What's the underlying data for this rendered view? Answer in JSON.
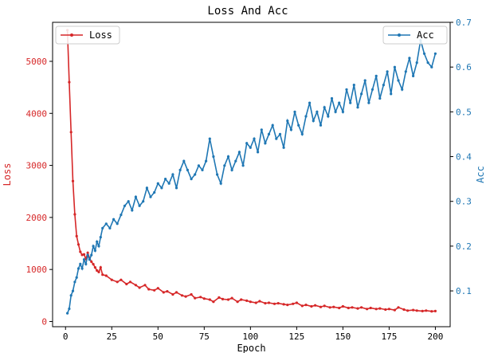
{
  "chart_data": {
    "type": "line",
    "title": "Loss And Acc",
    "xlabel": "Epoch",
    "xlim": [
      -7,
      208
    ],
    "x_ticks": [
      0,
      25,
      50,
      75,
      100,
      125,
      150,
      175,
      200
    ],
    "grid": false,
    "y_left": {
      "label": "Loss",
      "lim": [
        -100,
        5750
      ],
      "ticks": [
        0,
        1000,
        2000,
        3000,
        4000,
        5000
      ]
    },
    "y_right": {
      "label": "Acc",
      "lim": [
        0.02,
        0.7
      ],
      "ticks": [
        0.1,
        0.2,
        0.3,
        0.4,
        0.5,
        0.6,
        0.7
      ],
      "tick_labels": [
        "0.1",
        "0.2",
        "0.3",
        "0.4",
        "0.5",
        "0.6",
        "0.7"
      ]
    },
    "series": [
      {
        "name": "Loss",
        "axis": "left",
        "color": "#d62728",
        "legend": "upper-left",
        "points": [
          [
            1,
            5600
          ],
          [
            2,
            4600
          ],
          [
            3,
            3640
          ],
          [
            4,
            2700
          ],
          [
            5,
            2060
          ],
          [
            6,
            1640
          ],
          [
            7,
            1480
          ],
          [
            8,
            1340
          ],
          [
            9,
            1280
          ],
          [
            10,
            1290
          ],
          [
            11,
            1200
          ],
          [
            12,
            1320
          ],
          [
            13,
            1220
          ],
          [
            14,
            1150
          ],
          [
            15,
            1100
          ],
          [
            16,
            1040
          ],
          [
            17,
            980
          ],
          [
            18,
            950
          ],
          [
            19,
            1040
          ],
          [
            20,
            900
          ],
          [
            22,
            880
          ],
          [
            25,
            800
          ],
          [
            28,
            760
          ],
          [
            30,
            800
          ],
          [
            33,
            720
          ],
          [
            35,
            760
          ],
          [
            38,
            700
          ],
          [
            40,
            650
          ],
          [
            43,
            700
          ],
          [
            45,
            620
          ],
          [
            48,
            600
          ],
          [
            50,
            640
          ],
          [
            53,
            560
          ],
          [
            55,
            580
          ],
          [
            58,
            520
          ],
          [
            60,
            560
          ],
          [
            63,
            500
          ],
          [
            65,
            480
          ],
          [
            68,
            520
          ],
          [
            70,
            450
          ],
          [
            73,
            470
          ],
          [
            75,
            440
          ],
          [
            78,
            420
          ],
          [
            80,
            380
          ],
          [
            83,
            460
          ],
          [
            85,
            430
          ],
          [
            88,
            420
          ],
          [
            90,
            450
          ],
          [
            93,
            380
          ],
          [
            95,
            420
          ],
          [
            98,
            400
          ],
          [
            100,
            380
          ],
          [
            103,
            360
          ],
          [
            105,
            390
          ],
          [
            108,
            350
          ],
          [
            110,
            360
          ],
          [
            113,
            340
          ],
          [
            115,
            350
          ],
          [
            118,
            330
          ],
          [
            120,
            320
          ],
          [
            123,
            340
          ],
          [
            125,
            360
          ],
          [
            128,
            300
          ],
          [
            130,
            320
          ],
          [
            133,
            290
          ],
          [
            135,
            310
          ],
          [
            138,
            280
          ],
          [
            140,
            300
          ],
          [
            143,
            270
          ],
          [
            145,
            280
          ],
          [
            148,
            260
          ],
          [
            150,
            290
          ],
          [
            153,
            260
          ],
          [
            155,
            270
          ],
          [
            158,
            250
          ],
          [
            160,
            270
          ],
          [
            163,
            240
          ],
          [
            165,
            260
          ],
          [
            168,
            240
          ],
          [
            170,
            250
          ],
          [
            173,
            230
          ],
          [
            175,
            240
          ],
          [
            178,
            220
          ],
          [
            180,
            270
          ],
          [
            183,
            230
          ],
          [
            185,
            210
          ],
          [
            188,
            220
          ],
          [
            190,
            210
          ],
          [
            193,
            200
          ],
          [
            195,
            210
          ],
          [
            198,
            195
          ],
          [
            200,
            200
          ]
        ]
      },
      {
        "name": "Acc",
        "axis": "right",
        "color": "#1f77b4",
        "legend": "upper-right",
        "points": [
          [
            1,
            0.05
          ],
          [
            2,
            0.06
          ],
          [
            3,
            0.09
          ],
          [
            4,
            0.1
          ],
          [
            5,
            0.12
          ],
          [
            6,
            0.13
          ],
          [
            7,
            0.15
          ],
          [
            8,
            0.16
          ],
          [
            9,
            0.15
          ],
          [
            10,
            0.17
          ],
          [
            11,
            0.16
          ],
          [
            12,
            0.18
          ],
          [
            13,
            0.17
          ],
          [
            14,
            0.18
          ],
          [
            15,
            0.2
          ],
          [
            16,
            0.19
          ],
          [
            17,
            0.21
          ],
          [
            18,
            0.2
          ],
          [
            19,
            0.22
          ],
          [
            20,
            0.24
          ],
          [
            22,
            0.25
          ],
          [
            24,
            0.24
          ],
          [
            26,
            0.26
          ],
          [
            28,
            0.25
          ],
          [
            30,
            0.27
          ],
          [
            32,
            0.29
          ],
          [
            34,
            0.3
          ],
          [
            36,
            0.28
          ],
          [
            38,
            0.31
          ],
          [
            40,
            0.29
          ],
          [
            42,
            0.3
          ],
          [
            44,
            0.33
          ],
          [
            46,
            0.31
          ],
          [
            48,
            0.32
          ],
          [
            50,
            0.34
          ],
          [
            52,
            0.33
          ],
          [
            54,
            0.35
          ],
          [
            56,
            0.34
          ],
          [
            58,
            0.36
          ],
          [
            60,
            0.33
          ],
          [
            62,
            0.37
          ],
          [
            64,
            0.39
          ],
          [
            66,
            0.37
          ],
          [
            68,
            0.35
          ],
          [
            70,
            0.36
          ],
          [
            72,
            0.38
          ],
          [
            74,
            0.37
          ],
          [
            76,
            0.39
          ],
          [
            78,
            0.44
          ],
          [
            80,
            0.4
          ],
          [
            82,
            0.36
          ],
          [
            84,
            0.34
          ],
          [
            86,
            0.38
          ],
          [
            88,
            0.4
          ],
          [
            90,
            0.37
          ],
          [
            92,
            0.39
          ],
          [
            94,
            0.41
          ],
          [
            96,
            0.38
          ],
          [
            98,
            0.43
          ],
          [
            100,
            0.42
          ],
          [
            102,
            0.44
          ],
          [
            104,
            0.41
          ],
          [
            106,
            0.46
          ],
          [
            108,
            0.43
          ],
          [
            110,
            0.45
          ],
          [
            112,
            0.47
          ],
          [
            114,
            0.44
          ],
          [
            116,
            0.45
          ],
          [
            118,
            0.42
          ],
          [
            120,
            0.48
          ],
          [
            122,
            0.46
          ],
          [
            124,
            0.5
          ],
          [
            126,
            0.47
          ],
          [
            128,
            0.45
          ],
          [
            130,
            0.49
          ],
          [
            132,
            0.52
          ],
          [
            134,
            0.48
          ],
          [
            136,
            0.5
          ],
          [
            138,
            0.47
          ],
          [
            140,
            0.51
          ],
          [
            142,
            0.49
          ],
          [
            144,
            0.53
          ],
          [
            146,
            0.5
          ],
          [
            148,
            0.52
          ],
          [
            150,
            0.5
          ],
          [
            152,
            0.55
          ],
          [
            154,
            0.52
          ],
          [
            156,
            0.56
          ],
          [
            158,
            0.51
          ],
          [
            160,
            0.54
          ],
          [
            162,
            0.57
          ],
          [
            164,
            0.52
          ],
          [
            166,
            0.55
          ],
          [
            168,
            0.58
          ],
          [
            170,
            0.53
          ],
          [
            172,
            0.56
          ],
          [
            174,
            0.59
          ],
          [
            176,
            0.54
          ],
          [
            178,
            0.6
          ],
          [
            180,
            0.57
          ],
          [
            182,
            0.55
          ],
          [
            184,
            0.59
          ],
          [
            186,
            0.62
          ],
          [
            188,
            0.58
          ],
          [
            190,
            0.61
          ],
          [
            192,
            0.66
          ],
          [
            194,
            0.63
          ],
          [
            196,
            0.61
          ],
          [
            198,
            0.6
          ],
          [
            200,
            0.63
          ]
        ]
      }
    ]
  }
}
